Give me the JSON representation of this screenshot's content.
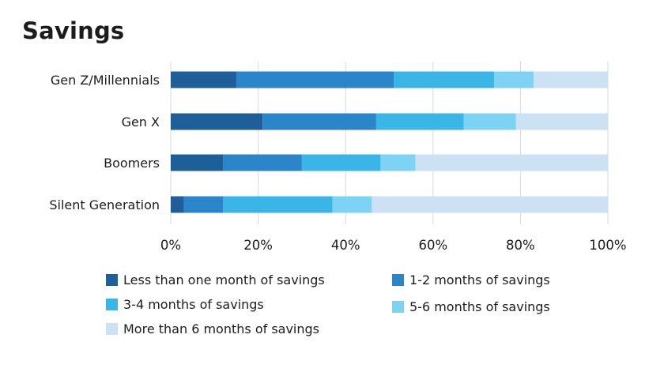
{
  "chart_data": {
    "type": "bar",
    "orientation": "horizontal",
    "stacked": true,
    "title": "Savings",
    "categories": [
      "Gen Z/Millennials",
      "Gen X",
      "Boomers",
      "Silent Generation"
    ],
    "series": [
      {
        "name": "Less than one month of savings",
        "color": "#1f5f99",
        "values": [
          15,
          21,
          12,
          3
        ]
      },
      {
        "name": "1-2 months of savings",
        "color": "#2b86c9",
        "values": [
          36,
          26,
          18,
          9
        ]
      },
      {
        "name": "3-4 months of savings",
        "color": "#39b6e7",
        "values": [
          23,
          20,
          18,
          25
        ]
      },
      {
        "name": "5-6 months of savings",
        "color": "#7cd3f3",
        "values": [
          9,
          12,
          8,
          9
        ]
      },
      {
        "name": "More than 6 months of savings",
        "color": "#cde1f4",
        "values": [
          17,
          21,
          44,
          54
        ]
      }
    ],
    "xlim": [
      0,
      100
    ],
    "xticks": [
      "0%",
      "20%",
      "40%",
      "60%",
      "80%",
      "100%"
    ],
    "grid": true,
    "legend_position": "bottom"
  }
}
